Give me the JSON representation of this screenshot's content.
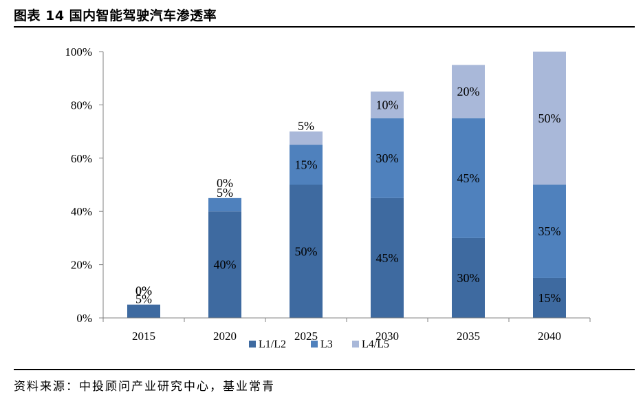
{
  "figure": {
    "title": "图表 14  国内智能驾驶汽车渗透率",
    "source": "资料来源：中投顾问产业研究中心，基业常青"
  },
  "chart_data": {
    "type": "bar",
    "stacked": true,
    "categories": [
      "2015",
      "2020",
      "2025",
      "2030",
      "2035",
      "2040"
    ],
    "series": [
      {
        "name": "L1/L2",
        "values": [
          5,
          40,
          50,
          45,
          30,
          15
        ],
        "labels": [
          "5%",
          "40%",
          "50%",
          "45%",
          "30%",
          "15%"
        ],
        "color": "#3e6aa0"
      },
      {
        "name": "L3",
        "values": [
          0,
          5,
          15,
          30,
          45,
          35
        ],
        "labels": [
          "0%",
          "5%",
          "15%",
          "30%",
          "45%",
          "35%"
        ],
        "color": "#4f81bd"
      },
      {
        "name": "L4/L5",
        "values": [
          0,
          0,
          5,
          10,
          20,
          50
        ],
        "labels": [
          "0%",
          "0%",
          "5%",
          "10%",
          "20%",
          "50%"
        ],
        "color": "#a9b8d9"
      }
    ],
    "yticks": [
      "0%",
      "20%",
      "40%",
      "60%",
      "80%",
      "100%"
    ],
    "ylim": [
      0,
      100
    ],
    "legend_position": "bottom",
    "grid": false
  }
}
